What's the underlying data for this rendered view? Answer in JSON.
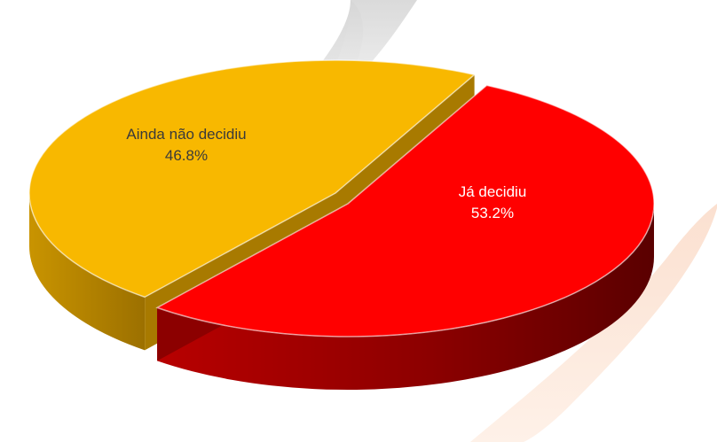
{
  "chart_data": {
    "type": "pie",
    "style": "3d-exploded",
    "slices": [
      {
        "label": "Já decidiu",
        "value": 53.2,
        "value_label": "53.2%",
        "color": "#ff0000",
        "side_color": "#8c0000",
        "text_color": "#ffffff"
      },
      {
        "label": "Ainda não decidiu",
        "value": 46.8,
        "value_label": "46.8%",
        "color": "#f8b800",
        "side_color": "#a87a00",
        "text_color": "#3a3a3a"
      }
    ],
    "legend": "none",
    "background_colors": [
      "#dcdcdc",
      "#fde3d2"
    ]
  }
}
